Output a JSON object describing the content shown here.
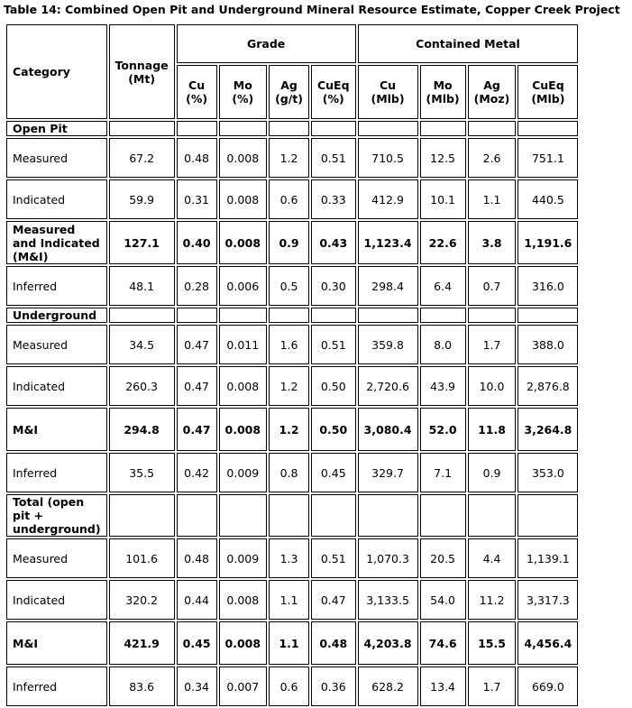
{
  "title": "Table 14: Combined Open Pit and Underground Mineral Resource Estimate, Copper Creek Project",
  "table": {
    "header": {
      "category": "Category",
      "tonnage": "Tonnage\n(Mt)",
      "grade": "Grade",
      "metal": "Contained Metal",
      "grade_cols": [
        "Cu\n(%)",
        "Mo\n(%)",
        "Ag\n(g/t)",
        "CuEq\n(%)"
      ],
      "metal_cols": [
        "Cu\n(Mlb)",
        "Mo\n(Mlb)",
        "Ag\n(Moz)",
        "CuEq\n(Mlb)"
      ]
    },
    "sections": [
      {
        "label": "Open Pit",
        "rows": [
          {
            "label": "Measured",
            "bold": false,
            "values": [
              "67.2",
              "0.48",
              "0.008",
              "1.2",
              "0.51",
              "710.5",
              "12.5",
              "2.6",
              "751.1"
            ]
          },
          {
            "label": "Indicated",
            "bold": false,
            "values": [
              "59.9",
              "0.31",
              "0.008",
              "0.6",
              "0.33",
              "412.9",
              "10.1",
              "1.1",
              "440.5"
            ]
          },
          {
            "label": "Measured and Indicated (M&I)",
            "bold": true,
            "values": [
              "127.1",
              "0.40",
              "0.008",
              "0.9",
              "0.43",
              "1,123.4",
              "22.6",
              "3.8",
              "1,191.6"
            ]
          },
          {
            "label": "Inferred",
            "bold": false,
            "values": [
              "48.1",
              "0.28",
              "0.006",
              "0.5",
              "0.30",
              "298.4",
              "6.4",
              "0.7",
              "316.0"
            ]
          }
        ]
      },
      {
        "label": "Underground",
        "rows": [
          {
            "label": "Measured",
            "bold": false,
            "values": [
              "34.5",
              "0.47",
              "0.011",
              "1.6",
              "0.51",
              "359.8",
              "8.0",
              "1.7",
              "388.0"
            ]
          },
          {
            "label": "Indicated",
            "bold": false,
            "values": [
              "260.3",
              "0.47",
              "0.008",
              "1.2",
              "0.50",
              "2,720.6",
              "43.9",
              "10.0",
              "2,876.8"
            ]
          },
          {
            "label": "M&I",
            "bold": true,
            "values": [
              "294.8",
              "0.47",
              "0.008",
              "1.2",
              "0.50",
              "3,080.4",
              "52.0",
              "11.8",
              "3,264.8"
            ]
          },
          {
            "label": "Inferred",
            "bold": false,
            "values": [
              "35.5",
              "0.42",
              "0.009",
              "0.8",
              "0.45",
              "329.7",
              "7.1",
              "0.9",
              "353.0"
            ]
          }
        ]
      },
      {
        "label": "Total (open pit + underground)",
        "rows": [
          {
            "label": "Measured",
            "bold": false,
            "values": [
              "101.6",
              "0.48",
              "0.009",
              "1.3",
              "0.51",
              "1,070.3",
              "20.5",
              "4.4",
              "1,139.1"
            ]
          },
          {
            "label": "Indicated",
            "bold": false,
            "values": [
              "320.2",
              "0.44",
              "0.008",
              "1.1",
              "0.47",
              "3,133.5",
              "54.0",
              "11.2",
              "3,317.3"
            ]
          },
          {
            "label": "M&I",
            "bold": true,
            "values": [
              "421.9",
              "0.45",
              "0.008",
              "1.1",
              "0.48",
              "4,203.8",
              "74.6",
              "15.5",
              "4,456.4"
            ]
          },
          {
            "label": "Inferred",
            "bold": false,
            "values": [
              "83.6",
              "0.34",
              "0.007",
              "0.6",
              "0.36",
              "628.2",
              "13.4",
              "1.7",
              "669.0"
            ]
          }
        ]
      }
    ]
  }
}
